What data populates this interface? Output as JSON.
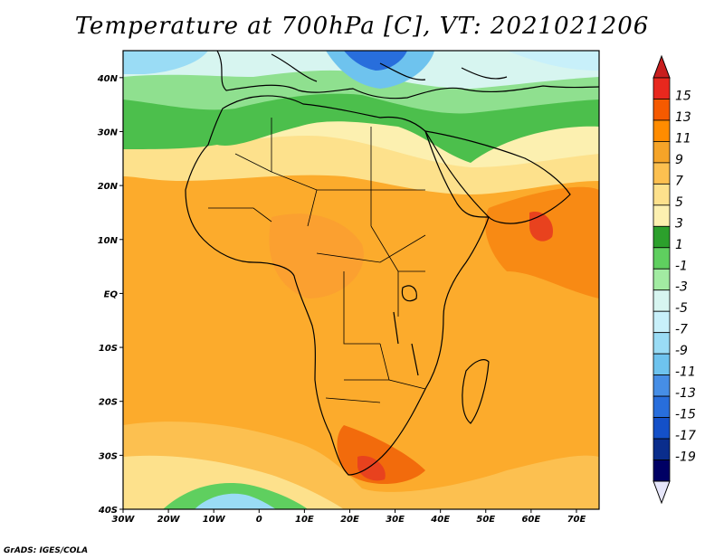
{
  "title": "Temperature at 700hPa [C], VT: 2021021206",
  "credit": "GrADS: IGES/COLA",
  "map": {
    "projection": "latlon",
    "lon_range": [
      -30,
      75
    ],
    "lat_range": [
      -40,
      45
    ],
    "lat_ticks": [
      {
        "value": 40,
        "label": "40N"
      },
      {
        "value": 30,
        "label": "30N"
      },
      {
        "value": 20,
        "label": "20N"
      },
      {
        "value": 10,
        "label": "10N"
      },
      {
        "value": 0,
        "label": "EQ"
      },
      {
        "value": -10,
        "label": "10S"
      },
      {
        "value": -20,
        "label": "20S"
      },
      {
        "value": -30,
        "label": "30S"
      },
      {
        "value": -40,
        "label": "40S"
      }
    ],
    "lon_ticks": [
      {
        "value": -30,
        "label": "30W"
      },
      {
        "value": -20,
        "label": "20W"
      },
      {
        "value": -10,
        "label": "10W"
      },
      {
        "value": 0,
        "label": "0"
      },
      {
        "value": 10,
        "label": "10E"
      },
      {
        "value": 20,
        "label": "20E"
      },
      {
        "value": 30,
        "label": "30E"
      },
      {
        "value": 40,
        "label": "40E"
      },
      {
        "value": 50,
        "label": "50E"
      },
      {
        "value": 60,
        "label": "60E"
      },
      {
        "value": 70,
        "label": "70E"
      }
    ],
    "field_description_regions": [
      {
        "region": "Mediterranean / Europe north of 35N",
        "approx_temp_c": -5
      },
      {
        "region": "North Africa 30-35N",
        "approx_temp_c": 0
      },
      {
        "region": "Sahara 20-30N",
        "approx_temp_c": 5
      },
      {
        "region": "Tropical Africa and oceans",
        "approx_temp_c": 10
      },
      {
        "region": "Arabian Sea / Horn of Africa",
        "approx_temp_c": 13
      },
      {
        "region": "South Africa / Mozambique channel",
        "approx_temp_c": 13
      },
      {
        "region": "Southern Ocean near 40S",
        "approx_temp_c": -1
      }
    ]
  },
  "colorbar": {
    "labels": [
      "15",
      "13",
      "11",
      "9",
      "7",
      "5",
      "3",
      "1",
      "-1",
      "-3",
      "-5",
      "-7",
      "-9",
      "-11",
      "-13",
      "-15",
      "-17",
      "-19"
    ],
    "colors": [
      "#e8281e",
      "#f55a00",
      "#ff8c00",
      "#f5a428",
      "#fcc050",
      "#fde18c",
      "#fcf0b0",
      "#2ca02c",
      "#5fcf5f",
      "#a2eba2",
      "#d7f5f0",
      "#c8f0fa",
      "#9adcf5",
      "#6ec3ee",
      "#468ee6",
      "#286edc",
      "#1450c8",
      "#0a2d8c",
      "#000064"
    ],
    "top_arrow_color": "#c81e1e",
    "bottom_arrow_color": "#e6e6fa"
  }
}
